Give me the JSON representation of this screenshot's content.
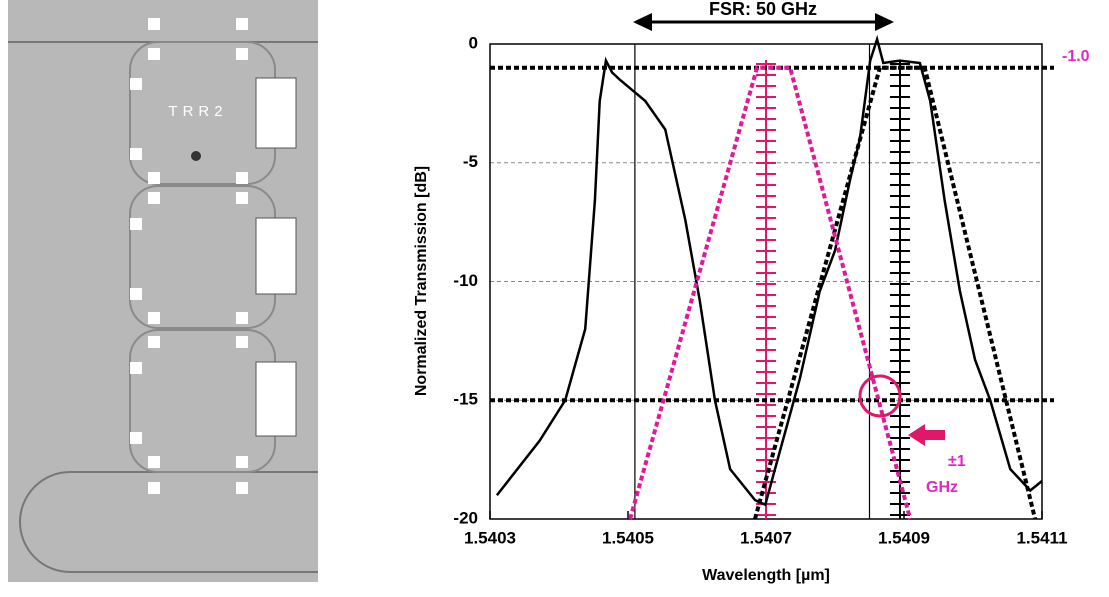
{
  "chart_data": {
    "type": "line",
    "xlabel": "Wavelength [µm]",
    "ylabel": "Normalized Transmission [dB]",
    "xlim": [
      1.5403,
      1.5411
    ],
    "xticks": [
      1.5403,
      1.5405,
      1.5407,
      1.5409,
      1.5411
    ],
    "ylim": [
      -20,
      0
    ],
    "yticks": [
      -20,
      -15,
      -10,
      -5,
      0
    ],
    "grid": true,
    "series": [
      {
        "color": "#000000",
        "style": "solid",
        "x": [
          1.54031,
          1.540372,
          1.540409,
          1.540438,
          1.540452,
          1.540459,
          1.540468,
          1.540477,
          1.540488,
          1.540525,
          1.540554,
          1.540583,
          1.540604,
          1.540626,
          1.540648,
          1.540684,
          1.540699,
          1.540713,
          1.540749,
          1.540778,
          1.5408,
          1.540822,
          1.540836,
          1.540851,
          1.540861,
          1.54087,
          1.540894,
          1.540923,
          1.540938,
          1.540959,
          1.540981,
          1.541003,
          1.541025,
          1.541054,
          1.541083,
          1.5411
        ],
        "values": [
          -19.0,
          -16.7,
          -15.0,
          -12.0,
          -6.6,
          -2.4,
          -0.7,
          -1.2,
          -1.5,
          -2.4,
          -3.6,
          -7.4,
          -10.8,
          -15.0,
          -17.9,
          -19.2,
          -19.4,
          -17.9,
          -14.1,
          -10.4,
          -8.7,
          -5.7,
          -4.0,
          -0.7,
          0.2,
          -0.8,
          -0.7,
          -0.8,
          -2.4,
          -6.6,
          -10.4,
          -13.3,
          -15.0,
          -17.9,
          -18.8,
          -18.4
        ]
      },
      {
        "color": "#000000",
        "style": "dotted",
        "x": [
          1.540684,
          1.540865,
          1.54093,
          1.54109
        ],
        "values": [
          -20,
          -1,
          -1,
          -20
        ]
      },
      {
        "color": "#e0189a",
        "style": "dotted",
        "x": [
          1.540503,
          1.540687,
          1.540735,
          1.540909
        ],
        "values": [
          -20,
          -1,
          -1,
          -20
        ]
      }
    ],
    "reference_lines": [
      -1,
      -15
    ],
    "vertical_lines": [
      1.54051,
      1.54085
    ],
    "annotations": {
      "fsr": "FSR: 50 GHz",
      "level": "-1.0",
      "tolerance": "±1",
      "tolerance_unit": "GHz"
    }
  },
  "micrograph": {
    "label": "TRR2"
  }
}
